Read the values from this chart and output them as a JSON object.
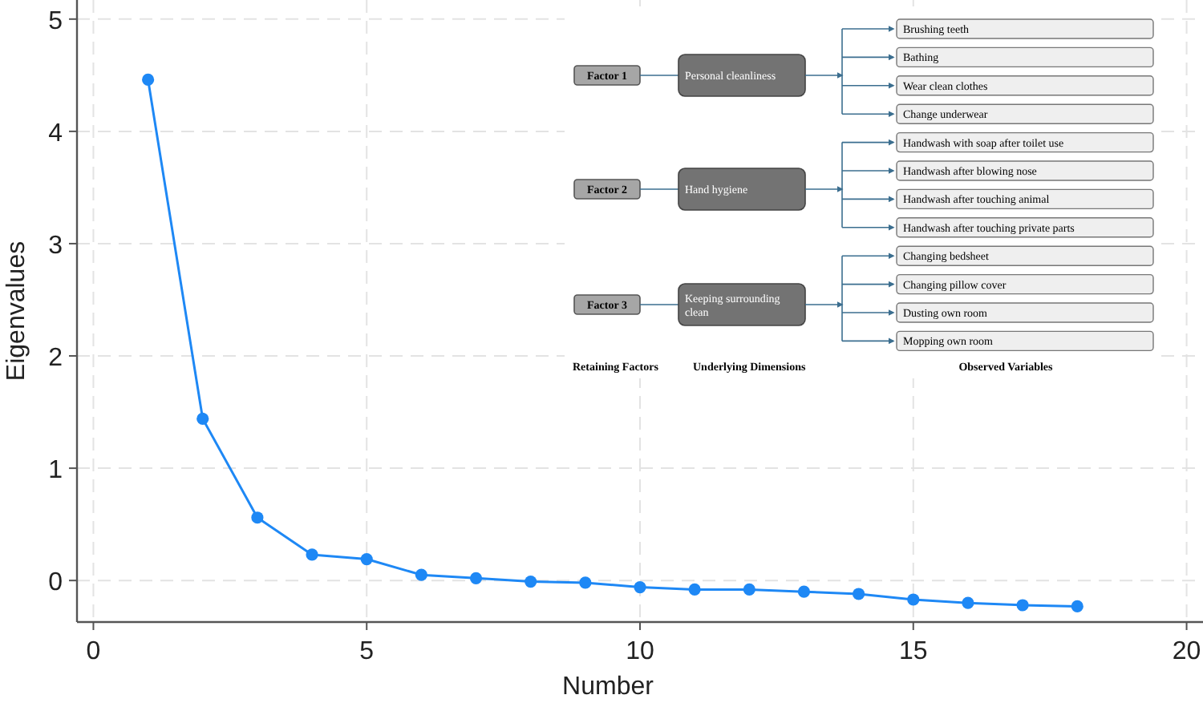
{
  "chart_data": {
    "type": "line",
    "xlabel": "Number",
    "ylabel": "Eigenvalues",
    "x": [
      1,
      2,
      3,
      4,
      5,
      6,
      7,
      8,
      9,
      10,
      11,
      12,
      13,
      14,
      15,
      16,
      17,
      18
    ],
    "series": [
      {
        "color": "#1e88f5",
        "values": [
          4.46,
          1.44,
          0.56,
          0.23,
          0.19,
          0.05,
          0.02,
          -0.01,
          -0.02,
          -0.06,
          -0.08,
          -0.08,
          -0.1,
          -0.12,
          -0.17,
          -0.2,
          -0.22,
          -0.23
        ]
      }
    ],
    "xlim": [
      -0.3,
      20.3
    ],
    "xticks": [
      0,
      5,
      10,
      15,
      20
    ],
    "ylim": [
      -0.37,
      5.17
    ],
    "yticks": [
      0,
      1,
      2,
      3,
      4,
      5
    ],
    "grid": true,
    "marker": "circle",
    "line_style": "solid",
    "annotations": [
      "Factor 1",
      "Factor 2",
      "Factor 3",
      "Personal cleanliness",
      "Hand hygiene",
      "Keeping surrounding clean",
      "Brushing teeth",
      "Bathing",
      "Wear clean clothes",
      "Change underwear",
      "Handwash with soap after toilet use",
      "Handwash after blowing nose",
      "Handwash after touching animal",
      "Handwash after touching private parts",
      "Changing bedsheet",
      "Changing pillow cover",
      "Dusting own room",
      "Mopping own room",
      "Retaining Factors",
      "Underlying Dimensions",
      "Observed Variables"
    ]
  }
}
